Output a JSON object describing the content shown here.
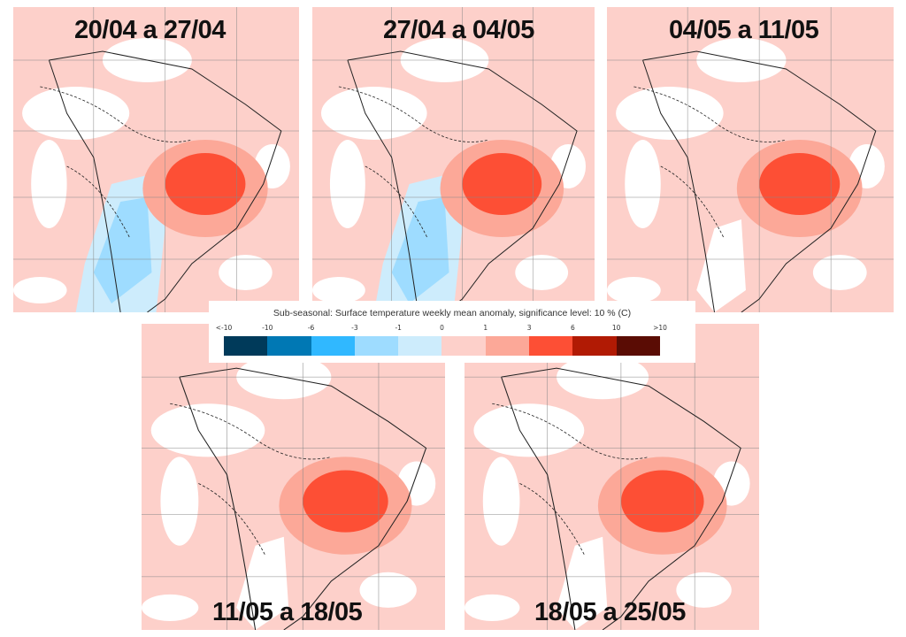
{
  "panels": [
    {
      "title": "20/04 a 27/04",
      "blue_extent": "large"
    },
    {
      "title": "27/04 a 04/05",
      "blue_extent": "large"
    },
    {
      "title": "04/05 a 11/05",
      "blue_extent": "small"
    },
    {
      "title": "11/05 a 18/05",
      "blue_extent": "small"
    },
    {
      "title": "18/05 a 25/05",
      "blue_extent": "small"
    }
  ],
  "colorbar": {
    "title": "Sub-seasonal: Surface temperature weekly mean anomaly, significance level: 10 % (C)",
    "ticks": [
      "<-10",
      "-10",
      "-6",
      "-3",
      "-1",
      "0",
      "1",
      "3",
      "6",
      "10",
      ">10"
    ],
    "colors": [
      "#003a5a",
      "#0078b4",
      "#30b8ff",
      "#9edcff",
      "#cdecfc",
      "#fdd0ca",
      "#fca898",
      "#fd4f35",
      "#b11a04",
      "#5a0c04"
    ]
  }
}
